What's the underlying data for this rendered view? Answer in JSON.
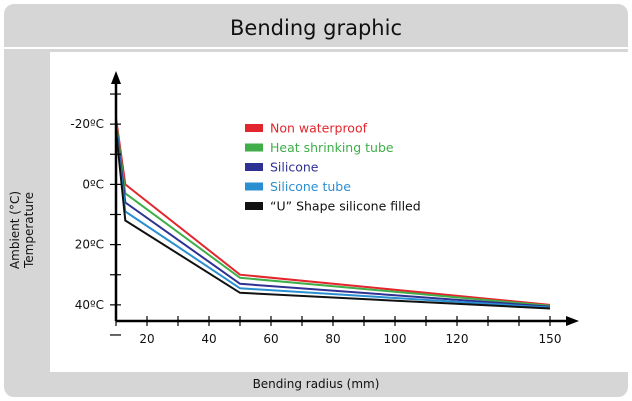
{
  "chart_data": {
    "type": "line",
    "title": "Bending graphic",
    "xlabel": "Bending radius (mm)",
    "ylabel": [
      "Ambient (°C)",
      "Temperature"
    ],
    "xlim": [
      10,
      160
    ],
    "ylim": [
      -32,
      52
    ],
    "y_inverted": true,
    "x_ticks": [
      20,
      40,
      60,
      80,
      100,
      120,
      150
    ],
    "y_ticks": [
      {
        "value": -20,
        "label": "-20ºC"
      },
      {
        "value": 0,
        "label": "0ºC"
      },
      {
        "value": 20,
        "label": "20ºC"
      },
      {
        "value": 40,
        "label": "40ºC"
      }
    ],
    "legend_position": "upper-center",
    "series": [
      {
        "name": "Non waterproof",
        "color": "#e3262d",
        "x": [
          10,
          13,
          50,
          150
        ],
        "y": [
          -22,
          0,
          30,
          40
        ]
      },
      {
        "name": "Heat shrinking tube",
        "color": "#3fae49",
        "x": [
          10,
          13,
          50,
          150
        ],
        "y": [
          -21,
          3,
          31,
          40.3
        ]
      },
      {
        "name": "Silicone",
        "color": "#2e3192",
        "x": [
          10,
          13,
          50,
          150
        ],
        "y": [
          -20,
          6,
          33,
          40.6
        ]
      },
      {
        "name": "Silicone tube",
        "color": "#2a8fd0",
        "x": [
          10,
          13,
          50,
          150
        ],
        "y": [
          -19,
          9,
          34.5,
          40.9
        ]
      },
      {
        "name": "“U” Shape silicone filled",
        "color": "#111111",
        "x": [
          10,
          13,
          50,
          150
        ],
        "y": [
          -18,
          12,
          36,
          41.2
        ]
      }
    ]
  }
}
